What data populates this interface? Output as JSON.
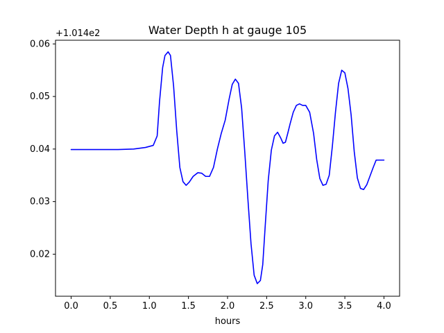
{
  "chart_data": {
    "type": "line",
    "title": "Water Depth h at gauge 105",
    "xlabel": "hours",
    "ylabel": "",
    "y_offset_label": "+1.014e2",
    "y_offset": 101.4,
    "xlim": [
      -0.2,
      4.2
    ],
    "ylim": [
      0.012,
      0.0607
    ],
    "x_ticks": [
      0.0,
      0.5,
      1.0,
      1.5,
      2.0,
      2.5,
      3.0,
      3.5,
      4.0
    ],
    "x_tick_labels": [
      "0.0",
      "0.5",
      "1.0",
      "1.5",
      "2.0",
      "2.5",
      "3.0",
      "3.5",
      "4.0"
    ],
    "y_ticks": [
      0.02,
      0.03,
      0.04,
      0.05,
      0.06
    ],
    "y_tick_labels": [
      "0.02",
      "0.03",
      "0.04",
      "0.05",
      "0.06"
    ],
    "grid": false,
    "legend": "none",
    "series": [
      {
        "color": "#0000ff",
        "x": [
          0.0,
          0.2,
          0.4,
          0.6,
          0.8,
          0.95,
          1.05,
          1.1,
          1.13,
          1.17,
          1.2,
          1.24,
          1.27,
          1.31,
          1.35,
          1.39,
          1.43,
          1.47,
          1.51,
          1.56,
          1.62,
          1.67,
          1.72,
          1.77,
          1.82,
          1.87,
          1.92,
          1.97,
          2.02,
          2.06,
          2.1,
          2.14,
          2.18,
          2.22,
          2.26,
          2.3,
          2.34,
          2.38,
          2.42,
          2.45,
          2.48,
          2.52,
          2.56,
          2.6,
          2.64,
          2.68,
          2.71,
          2.74,
          2.77,
          2.8,
          2.84,
          2.88,
          2.92,
          2.96,
          3.0,
          3.05,
          3.1,
          3.14,
          3.18,
          3.22,
          3.26,
          3.3,
          3.34,
          3.38,
          3.42,
          3.46,
          3.5,
          3.54,
          3.58,
          3.62,
          3.66,
          3.7,
          3.74,
          3.78,
          3.82,
          3.86,
          3.9,
          3.95,
          4.0
        ],
        "y": [
          0.0399,
          0.0399,
          0.0399,
          0.0399,
          0.04,
          0.0403,
          0.0407,
          0.0425,
          0.049,
          0.0555,
          0.0578,
          0.0585,
          0.0578,
          0.052,
          0.0435,
          0.0365,
          0.0338,
          0.0331,
          0.0337,
          0.0348,
          0.0355,
          0.0354,
          0.0348,
          0.0348,
          0.0365,
          0.04,
          0.043,
          0.0455,
          0.0495,
          0.0523,
          0.0533,
          0.0525,
          0.0478,
          0.0395,
          0.0305,
          0.022,
          0.016,
          0.0144,
          0.015,
          0.018,
          0.025,
          0.034,
          0.0398,
          0.0425,
          0.0432,
          0.0421,
          0.0411,
          0.0413,
          0.043,
          0.0448,
          0.047,
          0.0483,
          0.0486,
          0.0483,
          0.0483,
          0.047,
          0.043,
          0.038,
          0.0344,
          0.0331,
          0.0333,
          0.035,
          0.0405,
          0.047,
          0.0525,
          0.055,
          0.0545,
          0.0515,
          0.0465,
          0.0395,
          0.0345,
          0.0325,
          0.0323,
          0.0332,
          0.0348,
          0.0364,
          0.0379,
          0.0379,
          0.0379
        ]
      }
    ]
  }
}
